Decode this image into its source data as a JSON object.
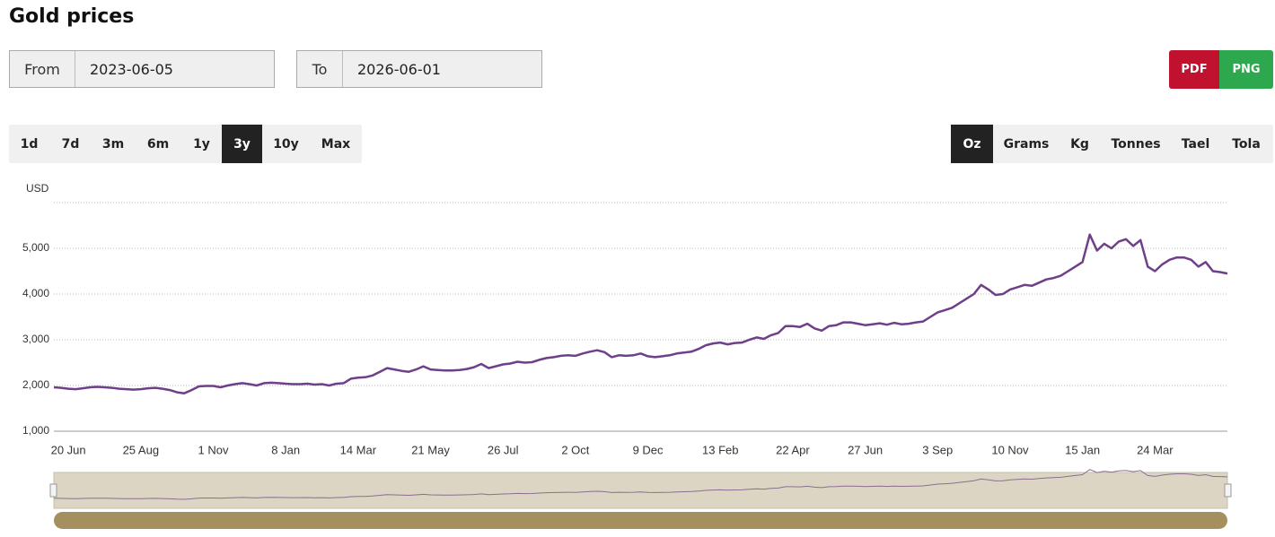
{
  "header": {
    "title": "Gold prices"
  },
  "from": {
    "label": "From",
    "value": "2023-06-05"
  },
  "to": {
    "label": "To",
    "value": "2026-06-01"
  },
  "export": [
    "PDF",
    "PNG"
  ],
  "ranges": [
    "1d",
    "7d",
    "3m",
    "6m",
    "1y",
    "3y",
    "10y",
    "Max"
  ],
  "active_range": "3y",
  "units": [
    "Oz",
    "Grams",
    "Kg",
    "Tonnes",
    "Tael",
    "Tola"
  ],
  "active_unit": "Oz",
  "chart_data": {
    "type": "line",
    "y_label": "USD",
    "color": "#6f3f8a",
    "grid": true,
    "ylim": [
      1000,
      6000
    ],
    "yticks": [
      {
        "value": 1000,
        "label": "1,000"
      },
      {
        "value": 2000,
        "label": "2,000"
      },
      {
        "value": 3000,
        "label": "3,000"
      },
      {
        "value": 4000,
        "label": "4,000"
      },
      {
        "value": 5000,
        "label": "5,000"
      }
    ],
    "categories": [
      null,
      null,
      "20 Jun",
      null,
      null,
      null,
      null,
      null,
      null,
      null,
      null,
      null,
      "25 Aug",
      null,
      null,
      null,
      null,
      null,
      null,
      null,
      null,
      null,
      "1 Nov",
      null,
      null,
      null,
      null,
      null,
      null,
      null,
      null,
      null,
      "8 Jan",
      null,
      null,
      null,
      null,
      null,
      null,
      null,
      null,
      null,
      "14 Mar",
      null,
      null,
      null,
      null,
      null,
      null,
      null,
      null,
      null,
      "21 May",
      null,
      null,
      null,
      null,
      null,
      null,
      null,
      null,
      null,
      "26 Jul",
      null,
      null,
      null,
      null,
      null,
      null,
      null,
      null,
      null,
      "2 Oct",
      null,
      null,
      null,
      null,
      null,
      null,
      null,
      null,
      null,
      "9 Dec",
      null,
      null,
      null,
      null,
      null,
      null,
      null,
      null,
      null,
      "13 Feb",
      null,
      null,
      null,
      null,
      null,
      null,
      null,
      null,
      null,
      "22 Apr",
      null,
      null,
      null,
      null,
      null,
      null,
      null,
      null,
      null,
      "27 Jun",
      null,
      null,
      null,
      null,
      null,
      null,
      null,
      null,
      null,
      "3 Sep",
      null,
      null,
      null,
      null,
      null,
      null,
      null,
      null,
      null,
      "10 Nov",
      null,
      null,
      null,
      null,
      null,
      null,
      null,
      null,
      null,
      "15 Jan",
      null,
      null,
      null,
      null,
      null,
      null,
      null,
      null,
      null,
      "24 Mar",
      null,
      null,
      null,
      null,
      null,
      null,
      null,
      null,
      null,
      null
    ],
    "values": [
      1960,
      1950,
      1930,
      1920,
      1940,
      1960,
      1970,
      1960,
      1950,
      1930,
      1920,
      1910,
      1920,
      1940,
      1950,
      1930,
      1900,
      1850,
      1830,
      1900,
      1980,
      1990,
      1990,
      1960,
      2000,
      2030,
      2050,
      2030,
      2000,
      2050,
      2060,
      2050,
      2040,
      2030,
      2030,
      2040,
      2020,
      2030,
      2000,
      2040,
      2050,
      2150,
      2170,
      2180,
      2220,
      2300,
      2380,
      2350,
      2320,
      2300,
      2350,
      2420,
      2350,
      2340,
      2330,
      2330,
      2340,
      2360,
      2400,
      2470,
      2380,
      2420,
      2460,
      2480,
      2520,
      2500,
      2510,
      2560,
      2600,
      2620,
      2650,
      2660,
      2650,
      2700,
      2740,
      2770,
      2730,
      2620,
      2660,
      2650,
      2660,
      2700,
      2640,
      2620,
      2640,
      2660,
      2700,
      2720,
      2740,
      2800,
      2880,
      2920,
      2940,
      2900,
      2930,
      2940,
      3000,
      3050,
      3020,
      3100,
      3150,
      3300,
      3300,
      3280,
      3350,
      3250,
      3200,
      3300,
      3320,
      3380,
      3380,
      3350,
      3320,
      3340,
      3360,
      3330,
      3370,
      3340,
      3350,
      3380,
      3400,
      3500,
      3600,
      3650,
      3700,
      3800,
      3900,
      4000,
      4200,
      4100,
      3980,
      4000,
      4100,
      4150,
      4200,
      4180,
      4250,
      4320,
      4350,
      4400,
      4500,
      4600,
      4700,
      5300,
      4950,
      5100,
      5000,
      5150,
      5200,
      5050,
      5180,
      4600,
      4500,
      4650,
      4750,
      4800,
      4800,
      4750,
      4600,
      4700,
      4500,
      4480,
      4450
    ]
  }
}
